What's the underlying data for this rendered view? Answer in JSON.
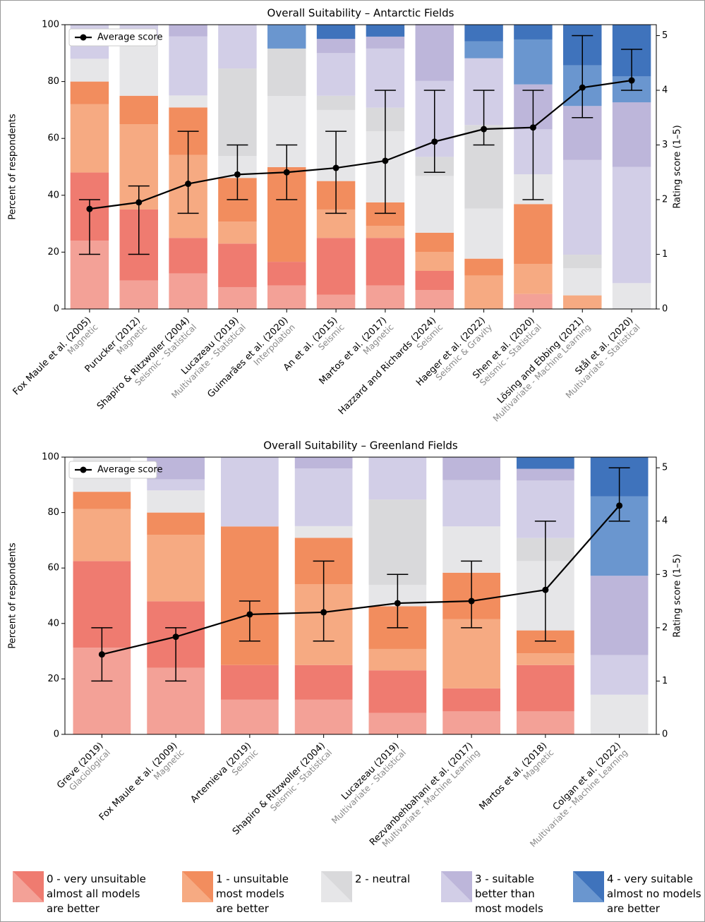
{
  "chart_data": [
    {
      "type": "stacked-bar",
      "title": "Overall Suitability – Antarctic Fields",
      "ylabel": "Percent of respondents",
      "y2label": "Rating score (1–5)",
      "categories": [
        "Fox Maule et al. (2005)",
        "Purucker (2012)",
        "Shapiro & Ritzwoller (2004)",
        "Lucazeau (2019)",
        "Guimarães et al. (2020)",
        "An et al. (2015)",
        "Martos et al. (2017)",
        "Hazzard and Richards (2024)",
        "Haeger et al. (2022)",
        "Shen et al. (2020)",
        "Lösing and Ebbing (2021)",
        "Stål et al. (2020)"
      ],
      "methods": [
        "Magnetic",
        "Magnetic",
        "Seismic - Statistical",
        "Multivariate - Statistical",
        "Interpolation",
        "Seismic",
        "Magnetic",
        "Seismic",
        "Seismic & Gravity",
        "Seismic - Statistical",
        "Multivariate - Machine Learning",
        "Multivariate - Statistical"
      ],
      "ylim": [
        0,
        100
      ],
      "yticks": [
        0,
        20,
        40,
        60,
        80,
        100
      ],
      "y2lim": [
        0,
        5.2
      ],
      "y2ticks": [
        0,
        1,
        2,
        3,
        4,
        5
      ],
      "series": [
        {
          "values": [
            [
              24,
              24
            ],
            [
              10,
              25
            ],
            [
              12.5,
              12.5
            ],
            [
              7.7,
              15.3
            ],
            [
              8.3,
              8.3
            ],
            [
              5,
              20
            ],
            [
              8.3,
              16.7
            ],
            [
              6.7,
              6.7
            ],
            [
              0,
              0
            ],
            [
              5.3,
              0
            ],
            [
              0,
              0
            ],
            [
              0,
              0
            ]
          ]
        },
        {
          "values": [
            [
              24,
              8
            ],
            [
              30,
              10
            ],
            [
              29.2,
              16.7
            ],
            [
              7.7,
              15.4
            ],
            [
              0,
              33.3
            ],
            [
              10,
              10
            ],
            [
              4.2,
              8.3
            ],
            [
              6.7,
              6.7
            ],
            [
              11.8,
              5.9
            ],
            [
              10.5,
              21.1
            ],
            [
              4.8,
              0
            ],
            [
              0,
              0
            ]
          ]
        },
        {
          "values": [
            [
              8,
              0
            ],
            [
              20,
              0
            ],
            [
              4.2,
              0
            ],
            [
              7.7,
              30.8
            ],
            [
              25,
              16.7
            ],
            [
              25,
              5
            ],
            [
              25,
              8.3
            ],
            [
              20,
              6.7
            ],
            [
              17.6,
              29.4
            ],
            [
              10.5,
              0
            ],
            [
              9.5,
              4.8
            ],
            [
              9.1,
              0
            ]
          ]
        },
        {
          "values": [
            [
              12,
              0
            ],
            [
              5,
              0
            ],
            [
              20.8,
              4.2
            ],
            [
              15.4,
              0
            ],
            [
              0,
              0
            ],
            [
              15,
              5
            ],
            [
              20.8,
              4.2
            ],
            [
              26.7,
              20
            ],
            [
              23.5,
              0
            ],
            [
              15.8,
              15.8
            ],
            [
              33.3,
              19
            ],
            [
              40.9,
              22.7
            ]
          ]
        },
        {
          "values": [
            [
              0,
              0
            ],
            [
              0,
              0
            ],
            [
              0,
              0
            ],
            [
              0,
              0
            ],
            [
              8.3,
              0
            ],
            [
              0,
              5
            ],
            [
              0,
              4.2
            ],
            [
              0,
              0
            ],
            [
              5.9,
              5.9
            ],
            [
              15.8,
              5.3
            ],
            [
              14.3,
              14.3
            ],
            [
              9.1,
              18.2
            ]
          ]
        }
      ],
      "average": {
        "name": "Average score",
        "axis": "y2",
        "color": "#000000",
        "values": [
          1.83,
          1.95,
          2.29,
          2.46,
          2.5,
          2.58,
          2.71,
          3.06,
          3.29,
          3.32,
          4.05,
          4.18
        ],
        "lower": [
          1,
          1,
          1.75,
          2,
          2,
          1.75,
          1.75,
          2.5,
          3,
          2,
          3.5,
          4
        ],
        "upper": [
          2,
          2.25,
          3.25,
          3,
          3,
          3.25,
          4,
          4,
          4,
          4,
          5,
          4.75
        ]
      }
    },
    {
      "type": "stacked-bar",
      "title": "Overall Suitability – Greenland Fields",
      "ylabel": "Percent of respondents",
      "y2label": "Rating score (1–5)",
      "categories": [
        "Greve (2019)",
        "Fox Maule et al. (2009)",
        "Artemieva (2019)",
        "Shapiro & Ritzwoller (2004)",
        "Lucazeau (2019)",
        "Rezvanbehbahani et al. (2017)",
        "Martos et al. (2018)",
        "Colgan et al. (2022)"
      ],
      "methods": [
        "Glaciological",
        "Magnetic",
        "Seismic",
        "Seismic - Statistical",
        "Multivariate - Statistical",
        "Multivariate - Machine Learning",
        "Magnetic",
        "Multivariate - Machine Learning"
      ],
      "ylim": [
        0,
        100
      ],
      "yticks": [
        0,
        20,
        40,
        60,
        80,
        100
      ],
      "y2lim": [
        0,
        5.2
      ],
      "y2ticks": [
        0,
        1,
        2,
        3,
        4,
        5
      ],
      "series": [
        {
          "values": [
            [
              31.25,
              31.25
            ],
            [
              24,
              24
            ],
            [
              12.5,
              12.5
            ],
            [
              12.5,
              12.5
            ],
            [
              7.7,
              15.4
            ],
            [
              8.3,
              8.3
            ],
            [
              8.3,
              16.7
            ],
            [
              0,
              0
            ]
          ]
        },
        {
          "values": [
            [
              18.75,
              6.25
            ],
            [
              24,
              8
            ],
            [
              0,
              50
            ],
            [
              29.2,
              16.7
            ],
            [
              7.7,
              15.4
            ],
            [
              25,
              16.7
            ],
            [
              4.2,
              8.3
            ],
            [
              0,
              0
            ]
          ]
        },
        {
          "values": [
            [
              12.5,
              0
            ],
            [
              8,
              0
            ],
            [
              0,
              0
            ],
            [
              4.2,
              0
            ],
            [
              7.7,
              30.8
            ],
            [
              16.7,
              0
            ],
            [
              25,
              8.3
            ],
            [
              14.3,
              0
            ]
          ]
        },
        {
          "values": [
            [
              0,
              0
            ],
            [
              4,
              8
            ],
            [
              25,
              0
            ],
            [
              20.8,
              4.2
            ],
            [
              15.4,
              0
            ],
            [
              16.7,
              8.3
            ],
            [
              20.8,
              4.2
            ],
            [
              14.3,
              28.6
            ]
          ]
        },
        {
          "values": [
            [
              0,
              0
            ],
            [
              0,
              0
            ],
            [
              0,
              0
            ],
            [
              0,
              0
            ],
            [
              0,
              0
            ],
            [
              0,
              0
            ],
            [
              0,
              4.2
            ],
            [
              28.6,
              14.3
            ]
          ]
        }
      ],
      "average": {
        "name": "Average score",
        "axis": "y2",
        "color": "#000000",
        "values": [
          1.5,
          1.83,
          2.25,
          2.29,
          2.46,
          2.5,
          2.71,
          4.29
        ],
        "lower": [
          1,
          1,
          1.75,
          1.75,
          2,
          2,
          1.75,
          4
        ],
        "upper": [
          2,
          2,
          2.5,
          3.25,
          3,
          3.25,
          4,
          5
        ]
      }
    }
  ],
  "legend": [
    {
      "label": [
        "0 - very unsuitable",
        "almost all models",
        "are better"
      ],
      "colors": [
        "#f3a197",
        "#ef7b70"
      ]
    },
    {
      "label": [
        "1 - unsuitable",
        "most models",
        "are better"
      ],
      "colors": [
        "#f6aa82",
        "#f28d5e"
      ]
    },
    {
      "label": [
        "2 - neutral"
      ],
      "colors": [
        "#e6e6e8",
        "#d9d9db"
      ]
    },
    {
      "label": [
        "3 - suitable",
        "better than",
        "most models"
      ],
      "colors": [
        "#d2cee7",
        "#bdb6da"
      ]
    },
    {
      "label": [
        "4 - very suitable",
        "almost no models",
        "are better"
      ],
      "colors": [
        "#6a96cf",
        "#3f73bc"
      ]
    }
  ]
}
